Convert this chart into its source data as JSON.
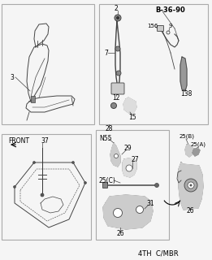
{
  "bg_color": "#f5f5f5",
  "border_color": "#aaaaaa",
  "line_color": "#444444",
  "text_color": "#000000",
  "part_label_B3690": "B-36-90",
  "footer_text": "4TH  C/MBR",
  "label_28": "28",
  "label_2": "2",
  "label_3": "3",
  "label_7": "7",
  "label_12": "12",
  "label_15": "15",
  "label_9": "9",
  "label_156": "156",
  "label_138": "138",
  "label_N55": "N55",
  "label_29": "29",
  "label_27": "27",
  "label_25C": "25(C)",
  "label_31": "31",
  "label_26": "26",
  "label_front": "FRONT",
  "label_37": "37",
  "label_25B": "25(B)",
  "label_25A": "25(A)",
  "label_26b": "26"
}
